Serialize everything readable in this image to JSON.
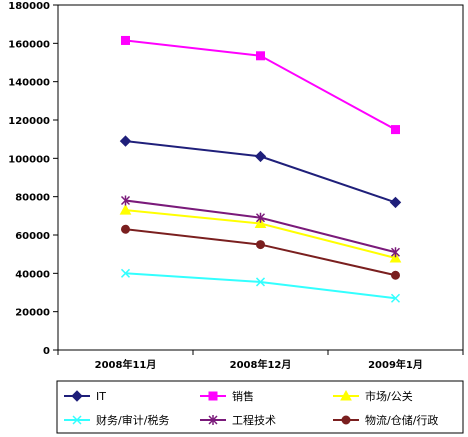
{
  "chart_data": {
    "type": "line",
    "title": "",
    "xlabel": "",
    "ylabel": "",
    "categories": [
      "2008年11月",
      "2008年12月",
      "2009年1月"
    ],
    "ylim": [
      0,
      180000
    ],
    "yticks": [
      0,
      20000,
      40000,
      60000,
      80000,
      100000,
      120000,
      140000,
      160000,
      180000
    ],
    "grid": false,
    "legend_position": "bottom",
    "series": [
      {
        "name": "IT",
        "values": [
          109000,
          101000,
          77000
        ],
        "color": "#1F1F7A",
        "marker": "diamond"
      },
      {
        "name": "销售",
        "values": [
          161500,
          153500,
          115000
        ],
        "color": "#FF00FF",
        "marker": "square"
      },
      {
        "name": "市场/公关",
        "values": [
          73000,
          66000,
          48000
        ],
        "color": "#FFFF00",
        "marker": "triangle"
      },
      {
        "name": "财务/审计/税务",
        "values": [
          40000,
          35500,
          27000
        ],
        "color": "#33FFFF",
        "marker": "x"
      },
      {
        "name": "工程技术",
        "values": [
          78000,
          69000,
          51000
        ],
        "color": "#7A1A7A",
        "marker": "star"
      },
      {
        "name": "物流/仓储/行政",
        "values": [
          63000,
          55000,
          39000
        ],
        "color": "#7A1F1F",
        "marker": "circle"
      }
    ]
  }
}
